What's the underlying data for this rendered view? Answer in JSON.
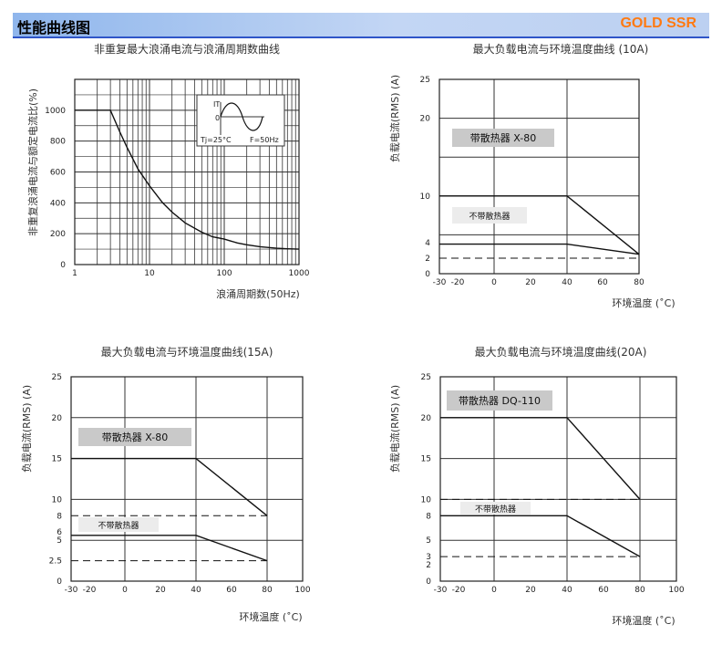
{
  "header": {
    "title": "性能曲线图",
    "brand": "GOLD SSR",
    "bg_color": "#bcd0f1",
    "brand_color": "#ff7a12",
    "rule_color": "#2f55c8"
  },
  "chart_data": [
    {
      "type": "line",
      "title": "非重复最大浪涌电流与浪涌周期数曲线",
      "xlabel": "浪涌周期数(50Hz)",
      "ylabel": "非重复浪涌电流与额定电流比(%)",
      "x_scale": "log",
      "xlim": [
        1,
        1000
      ],
      "ylim": [
        0,
        1200
      ],
      "x_ticks": [
        1,
        10,
        100,
        1000
      ],
      "y_ticks": [
        0,
        200,
        400,
        600,
        800,
        1000
      ],
      "grid": true,
      "series": [
        {
          "style": "solid",
          "x": [
            1,
            3,
            4,
            5,
            7,
            10,
            15,
            20,
            30,
            50,
            70,
            100,
            150,
            200,
            300,
            500,
            700,
            1000
          ],
          "y": [
            1000,
            1000,
            860,
            760,
            620,
            510,
            400,
            340,
            270,
            210,
            180,
            165,
            140,
            128,
            116,
            106,
            102,
            100
          ]
        }
      ],
      "inset": {
        "label_it": "IT",
        "label_zero": "0",
        "label_tj": "Tj=25°C",
        "label_f": "F=50Hz"
      }
    },
    {
      "type": "line",
      "title": "最大负载电流与环境温度曲线 (10A)",
      "xlabel": "环境温度 (˚C)",
      "ylabel": "负载电流(RMS) (A)",
      "xlim": [
        -30,
        80
      ],
      "ylim": [
        0,
        25
      ],
      "x_ticks": [
        -30,
        -20,
        0,
        20,
        40,
        60,
        80
      ],
      "y_ticks": [
        0,
        2,
        4,
        10,
        20,
        25
      ],
      "grid": true,
      "series": [
        {
          "name": "带散热器 X-80",
          "style": "solid",
          "x": [
            -30,
            40,
            80
          ],
          "y": [
            10,
            10,
            2.5
          ]
        },
        {
          "name": "不带散热器",
          "style": "solid",
          "x": [
            -30,
            40,
            80
          ],
          "y": [
            3.8,
            3.8,
            2.5
          ]
        },
        {
          "style": "dashed",
          "x": [
            -30,
            80
          ],
          "y": [
            2,
            2
          ]
        }
      ]
    },
    {
      "type": "line",
      "title": "最大负载电流与环境温度曲线(15A)",
      "xlabel": "环境温度 (˚C)",
      "ylabel": "负载电流(RMS) (A)",
      "xlim": [
        -30,
        100
      ],
      "ylim": [
        0,
        25
      ],
      "x_ticks": [
        -30,
        -20,
        0,
        20,
        40,
        60,
        80,
        100
      ],
      "y_ticks": [
        0,
        2.5,
        5,
        6,
        8,
        10,
        15,
        20,
        25
      ],
      "grid": true,
      "series": [
        {
          "name": "带散热器 X-80",
          "style": "solid",
          "x": [
            -30,
            40,
            80
          ],
          "y": [
            15,
            15,
            8
          ]
        },
        {
          "name": "不带散热器",
          "style": "solid",
          "x": [
            -30,
            40,
            80
          ],
          "y": [
            5.6,
            5.6,
            2.5
          ]
        },
        {
          "style": "dashed",
          "x": [
            -30,
            80
          ],
          "y": [
            8,
            8
          ]
        },
        {
          "style": "dashed",
          "x": [
            -30,
            80
          ],
          "y": [
            2.5,
            2.5
          ]
        }
      ]
    },
    {
      "type": "line",
      "title": "最大负载电流与环境温度曲线(20A)",
      "xlabel": "环境温度 (˚C)",
      "ylabel": "负载电流(RMS) (A)",
      "xlim": [
        -30,
        100
      ],
      "ylim": [
        0,
        25
      ],
      "x_ticks": [
        -30,
        -20,
        0,
        20,
        40,
        60,
        80,
        100
      ],
      "y_ticks": [
        0,
        2,
        3,
        5,
        8,
        10,
        15,
        20,
        25
      ],
      "grid": true,
      "series": [
        {
          "name": "带散热器 DQ-110",
          "style": "solid",
          "x": [
            -30,
            40,
            80
          ],
          "y": [
            20,
            20,
            10
          ]
        },
        {
          "name": "不带散热器",
          "style": "solid",
          "x": [
            -30,
            40,
            80
          ],
          "y": [
            8,
            8,
            3
          ]
        },
        {
          "style": "dashed",
          "x": [
            -30,
            80
          ],
          "y": [
            10,
            10
          ]
        },
        {
          "style": "dashed",
          "x": [
            -30,
            80
          ],
          "y": [
            3,
            3
          ]
        }
      ]
    }
  ]
}
